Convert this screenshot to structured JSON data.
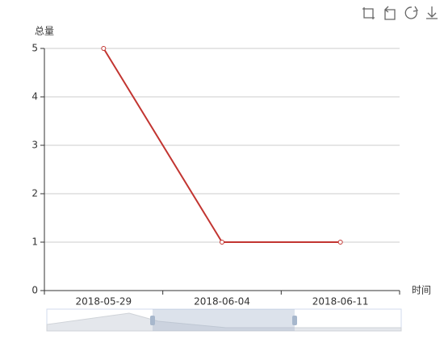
{
  "chart_data": {
    "type": "line",
    "y_axis_label": "总量",
    "x_axis_label": "时间",
    "categories": [
      "2018-05-29",
      "2018-06-04",
      "2018-06-11"
    ],
    "values": [
      5,
      1,
      1
    ],
    "color": "#c23531",
    "ylim": [
      0,
      5
    ],
    "yticks": [
      0,
      1,
      2,
      3,
      4,
      5
    ],
    "grid": true
  }
}
